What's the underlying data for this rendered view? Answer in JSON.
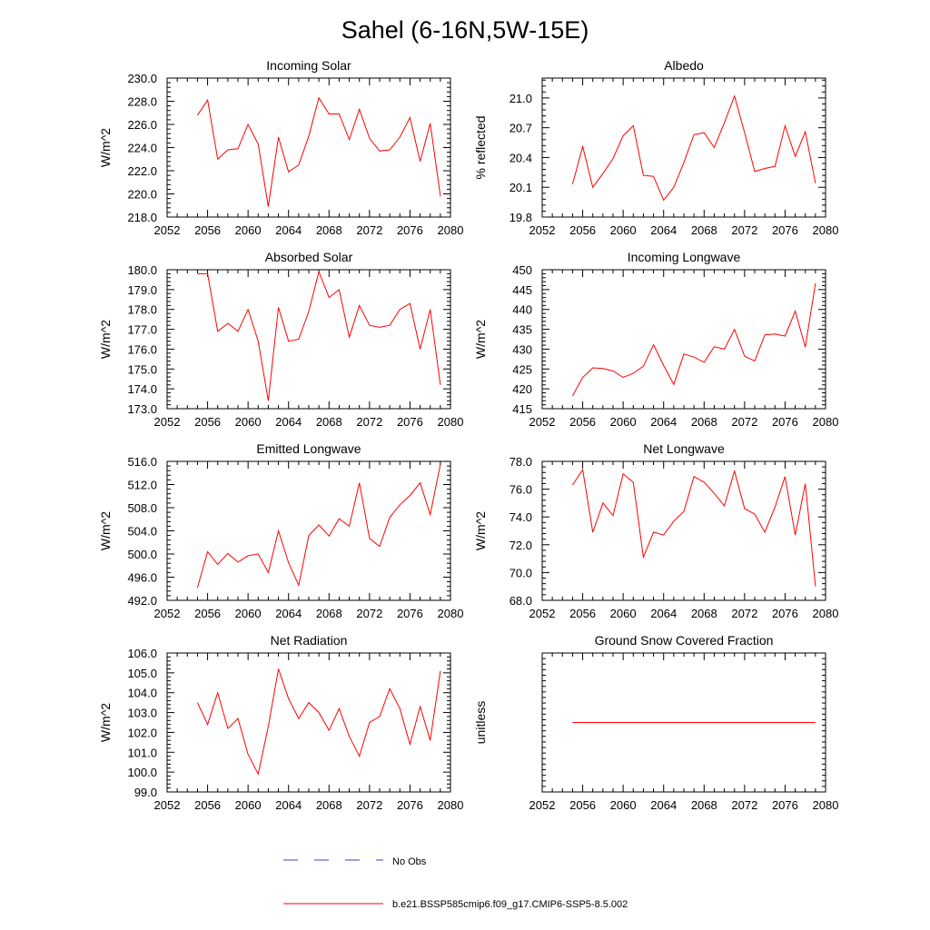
{
  "title": "Sahel (6-16N,5W-15E)",
  "colors": {
    "model": "#ff0000",
    "obs": "#4040c0",
    "axis": "#000000"
  },
  "legend": [
    {
      "label": "No Obs",
      "style": "dashed",
      "color": "#4040c0"
    },
    {
      "label": "b.e21.BSSP585cmip6.f09_g17.CMIP6-SSP5-8.5.002",
      "style": "solid",
      "color": "#ff0000"
    }
  ],
  "chart_data": [
    {
      "type": "line",
      "title": "Incoming Solar",
      "ylabel": "W/m^2",
      "xlim": [
        2052,
        2080
      ],
      "ylim": [
        218,
        230
      ],
      "ytick_step": 2,
      "ytick_decimals": 1,
      "xticks": [
        2052,
        2056,
        2060,
        2064,
        2068,
        2072,
        2076,
        2080
      ],
      "x": [
        2055,
        2056,
        2057,
        2058,
        2059,
        2060,
        2061,
        2062,
        2063,
        2064,
        2065,
        2066,
        2067,
        2068,
        2069,
        2070,
        2071,
        2072,
        2073,
        2074,
        2075,
        2076,
        2077,
        2078,
        2079
      ],
      "series": [
        {
          "values": [
            226.8,
            228.1,
            223.0,
            223.8,
            223.9,
            226.0,
            224.3,
            218.9,
            224.9,
            221.9,
            222.5,
            225.0,
            228.3,
            226.9,
            226.9,
            224.7,
            227.3,
            224.8,
            223.7,
            223.8,
            224.9,
            226.6,
            222.8,
            226.1,
            219.8
          ]
        }
      ]
    },
    {
      "type": "line",
      "title": "Albedo",
      "ylabel": "% reflected",
      "xlim": [
        2052,
        2080
      ],
      "ylim": [
        19.8,
        21.2
      ],
      "ytick_step": 0.3,
      "ytick_decimals": 1,
      "xticks": [
        2052,
        2056,
        2060,
        2064,
        2068,
        2072,
        2076,
        2080
      ],
      "x": [
        2055,
        2056,
        2057,
        2058,
        2059,
        2060,
        2061,
        2062,
        2063,
        2064,
        2065,
        2066,
        2067,
        2068,
        2069,
        2070,
        2071,
        2072,
        2073,
        2074,
        2075,
        2076,
        2077,
        2078,
        2079
      ],
      "series": [
        {
          "values": [
            20.13,
            20.51,
            20.1,
            20.24,
            20.39,
            20.62,
            20.72,
            20.22,
            20.21,
            19.97,
            20.1,
            20.35,
            20.63,
            20.65,
            20.5,
            20.75,
            21.02,
            20.65,
            20.26,
            20.29,
            20.31,
            20.72,
            20.41,
            20.66,
            20.14
          ]
        }
      ]
    },
    {
      "type": "line",
      "title": "Absorbed Solar",
      "ylabel": "W/m^2",
      "xlim": [
        2052,
        2080
      ],
      "ylim": [
        173,
        180
      ],
      "ytick_step": 1,
      "ytick_decimals": 1,
      "xticks": [
        2052,
        2056,
        2060,
        2064,
        2068,
        2072,
        2076,
        2080
      ],
      "x": [
        2055,
        2056,
        2057,
        2058,
        2059,
        2060,
        2061,
        2062,
        2063,
        2064,
        2065,
        2066,
        2067,
        2068,
        2069,
        2070,
        2071,
        2072,
        2073,
        2074,
        2075,
        2076,
        2077,
        2078,
        2079
      ],
      "series": [
        {
          "values": [
            179.8,
            179.8,
            176.9,
            177.3,
            176.9,
            178.0,
            176.4,
            173.4,
            178.1,
            176.4,
            176.5,
            177.9,
            179.9,
            178.6,
            179.0,
            176.6,
            178.2,
            177.2,
            177.1,
            177.2,
            178.0,
            178.3,
            176.0,
            178.0,
            174.2
          ]
        }
      ]
    },
    {
      "type": "line",
      "title": "Incoming Longwave",
      "ylabel": "W/m^2",
      "xlim": [
        2052,
        2080
      ],
      "ylim": [
        415,
        450
      ],
      "ytick_step": 5,
      "ytick_decimals": 0,
      "xticks": [
        2052,
        2056,
        2060,
        2064,
        2068,
        2072,
        2076,
        2080
      ],
      "x": [
        2055,
        2056,
        2057,
        2058,
        2059,
        2060,
        2061,
        2062,
        2063,
        2064,
        2065,
        2066,
        2067,
        2068,
        2069,
        2070,
        2071,
        2072,
        2073,
        2074,
        2075,
        2076,
        2077,
        2078,
        2079
      ],
      "series": [
        {
          "values": [
            418.2,
            422.9,
            425.3,
            425.1,
            424.5,
            422.9,
            423.9,
            425.7,
            431.1,
            425.9,
            421.1,
            428.8,
            428.0,
            426.7,
            430.6,
            430.0,
            435.0,
            428.2,
            427.0,
            433.6,
            433.8,
            433.3,
            439.6,
            430.5,
            446.6
          ]
        }
      ]
    },
    {
      "type": "line",
      "title": "Emitted Longwave",
      "ylabel": "W/m^2",
      "xlim": [
        2052,
        2080
      ],
      "ylim": [
        492,
        516
      ],
      "ytick_step": 4,
      "ytick_decimals": 1,
      "xticks": [
        2052,
        2056,
        2060,
        2064,
        2068,
        2072,
        2076,
        2080
      ],
      "x": [
        2055,
        2056,
        2057,
        2058,
        2059,
        2060,
        2061,
        2062,
        2063,
        2064,
        2065,
        2066,
        2067,
        2068,
        2069,
        2070,
        2071,
        2072,
        2073,
        2074,
        2075,
        2076,
        2077,
        2078,
        2079
      ],
      "series": [
        {
          "values": [
            494.2,
            500.4,
            498.2,
            500.1,
            498.6,
            499.7,
            500.0,
            496.8,
            504.0,
            498.5,
            494.6,
            503.2,
            505.0,
            503.1,
            506.1,
            504.8,
            512.3,
            502.7,
            501.3,
            506.3,
            508.5,
            510.1,
            512.3,
            506.8,
            515.5
          ]
        }
      ]
    },
    {
      "type": "line",
      "title": "Net Longwave",
      "ylabel": "W/m^2",
      "xlim": [
        2052,
        2080
      ],
      "ylim": [
        68,
        78
      ],
      "ytick_step": 2,
      "ytick_decimals": 1,
      "xticks": [
        2052,
        2056,
        2060,
        2064,
        2068,
        2072,
        2076,
        2080
      ],
      "x": [
        2055,
        2056,
        2057,
        2058,
        2059,
        2060,
        2061,
        2062,
        2063,
        2064,
        2065,
        2066,
        2067,
        2068,
        2069,
        2070,
        2071,
        2072,
        2073,
        2074,
        2075,
        2076,
        2077,
        2078,
        2079
      ],
      "series": [
        {
          "values": [
            76.3,
            77.4,
            72.9,
            75.0,
            74.1,
            77.1,
            76.5,
            71.1,
            72.9,
            72.7,
            73.7,
            74.4,
            76.9,
            76.5,
            75.7,
            74.8,
            77.3,
            74.6,
            74.2,
            72.9,
            74.7,
            76.9,
            72.7,
            76.4,
            69.0
          ]
        }
      ]
    },
    {
      "type": "line",
      "title": "Net Radiation",
      "ylabel": "W/m^2",
      "xlim": [
        2052,
        2080
      ],
      "ylim": [
        99,
        106
      ],
      "ytick_step": 1,
      "ytick_decimals": 1,
      "xticks": [
        2052,
        2056,
        2060,
        2064,
        2068,
        2072,
        2076,
        2080
      ],
      "x": [
        2055,
        2056,
        2057,
        2058,
        2059,
        2060,
        2061,
        2062,
        2063,
        2064,
        2065,
        2066,
        2067,
        2068,
        2069,
        2070,
        2071,
        2072,
        2073,
        2074,
        2075,
        2076,
        2077,
        2078,
        2079
      ],
      "series": [
        {
          "values": [
            103.5,
            102.4,
            104.0,
            102.2,
            102.7,
            100.9,
            99.9,
            102.3,
            105.2,
            103.7,
            102.7,
            103.5,
            103.0,
            102.1,
            103.2,
            101.8,
            100.8,
            102.5,
            102.8,
            104.2,
            103.2,
            101.4,
            103.3,
            101.6,
            105.1
          ]
        }
      ]
    },
    {
      "type": "line",
      "title": "Ground Snow Covered Fraction",
      "ylabel": "unitless",
      "xlim": [
        2052,
        2080
      ],
      "ylim": [
        -1.0,
        1.0
      ],
      "ytick_step": 0.4,
      "ytick_start": -0.8,
      "ytick_decimals": 1,
      "xticks": [
        2052,
        2056,
        2060,
        2064,
        2068,
        2072,
        2076,
        2080
      ],
      "x": [
        2055,
        2056,
        2057,
        2058,
        2059,
        2060,
        2061,
        2062,
        2063,
        2064,
        2065,
        2066,
        2067,
        2068,
        2069,
        2070,
        2071,
        2072,
        2073,
        2074,
        2075,
        2076,
        2077,
        2078,
        2079
      ],
      "series": [
        {
          "values": [
            0,
            0,
            0,
            0,
            0,
            0,
            0,
            0,
            0,
            0,
            0,
            0,
            0,
            0,
            0,
            0,
            0,
            0,
            0,
            0,
            0,
            0,
            0,
            0,
            0
          ]
        }
      ]
    }
  ]
}
